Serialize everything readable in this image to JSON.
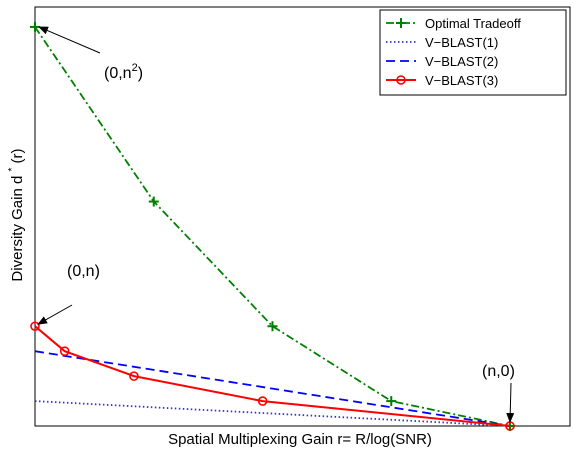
{
  "chart_data": {
    "type": "line",
    "xlabel": "Spatial Multiplexing Gain r= R/log(SNR)",
    "ylabel_main": "Diversity Gain d",
    "ylabel_sup": "*",
    "ylabel_tail": "(r)",
    "xlim": [
      0,
      4
    ],
    "ylim": [
      0,
      16.8
    ],
    "grid": false,
    "ticks_shown": false,
    "legend_position": "top-right",
    "series": [
      {
        "name": "Optimal Tradeoff",
        "color": "#008000",
        "line_style": "dash-dot",
        "marker": "plus",
        "x": [
          0,
          1,
          2,
          3,
          4
        ],
        "y": [
          16,
          9,
          4,
          1,
          0
        ]
      },
      {
        "name": "V−BLAST(1)",
        "color": "#3333cc",
        "line_style": "dotted",
        "marker": "none",
        "x": [
          0,
          4
        ],
        "y": [
          1,
          0
        ]
      },
      {
        "name": "V−BLAST(2)",
        "color": "#0000ff",
        "line_style": "dashed",
        "marker": "none",
        "x": [
          0,
          4
        ],
        "y": [
          3,
          0
        ]
      },
      {
        "name": "V−BLAST(3)",
        "color": "#ff0000",
        "line_style": "solid",
        "marker": "circle",
        "x": [
          0,
          0.25,
          0.833,
          1.917,
          4
        ],
        "y": [
          4,
          3,
          2,
          1,
          0
        ]
      }
    ],
    "annotations": [
      {
        "id": "top",
        "text_pre": "(0,n",
        "text_sup": "2",
        "text_post": ")",
        "target_x": 0,
        "target_y": 16
      },
      {
        "id": "mid",
        "text_pre": "(0,n)",
        "text_sup": "",
        "text_post": "",
        "target_x": 0,
        "target_y": 4
      },
      {
        "id": "end",
        "text_pre": "(n,0)",
        "text_sup": "",
        "text_post": "",
        "target_x": 4,
        "target_y": 0
      }
    ]
  }
}
